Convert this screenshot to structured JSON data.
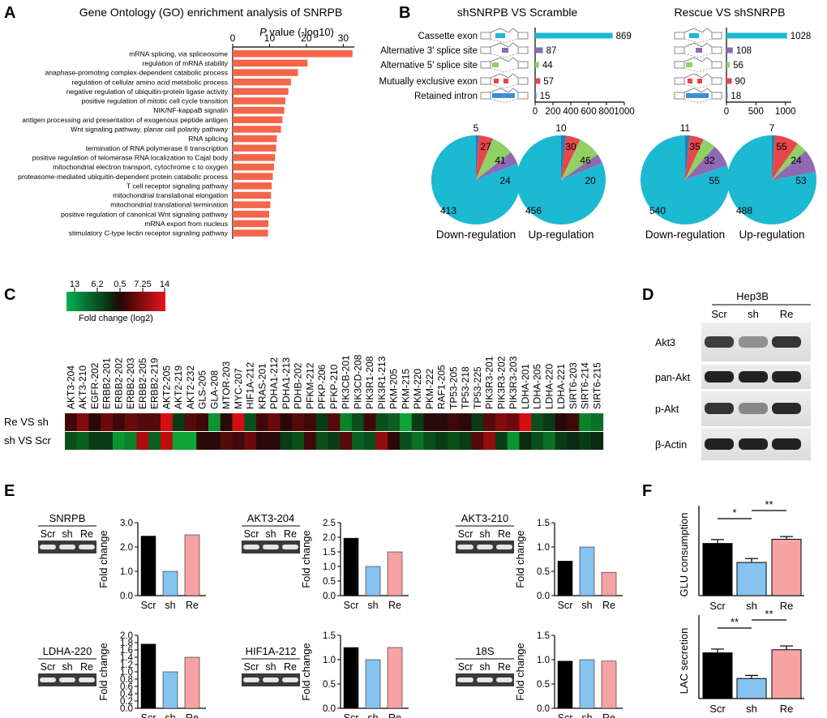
{
  "panels": {
    "a": "A",
    "b": "B",
    "c": "C",
    "d": "D",
    "e": "E",
    "f": "F"
  },
  "colors": {
    "go_bar": "#f4664a",
    "cyan": "#1cb9d3",
    "red": "#e8474a",
    "green": "#8fd165",
    "purple": "#8f6ab3",
    "blue_sh": "#87c3f1",
    "pink_re": "#f6a3a3",
    "black": "#000000"
  },
  "panel_a": {
    "title": "Gene Ontology (GO) enrichment analysis of SNRPB",
    "axis_label_italic": "P",
    "axis_label_rest": " value (-log10)",
    "chart_data": {
      "type": "bar",
      "orientation": "horizontal",
      "title": "Gene Ontology (GO) enrichment analysis of SNRPB",
      "xlabel": "P value (-log10)",
      "xlim": [
        0,
        33
      ],
      "xticks": [
        0,
        10,
        20,
        30
      ],
      "categories": [
        "mRNA splicing, via spliceosome",
        "regulation of mRNA stability",
        "anaphase-promoting complex-dependent catabolic process",
        "regulation of cellular amino acid metabolic process",
        "negative regulation of ubiquitin-protein ligase activity",
        "positive regulation of mitotic cell cycle transition",
        "NIK/NF-kappaB signalin",
        "antigen processing and presentation of exogenous peptide antigen",
        "Wnt signaling pathway, planar cell polarity pathway",
        "RNA splicing",
        "termination of RNA polymerase II transcription",
        "positive regulation of telomerase RNA localization to Cajal body",
        "mitochondrial electron transport, cytochrome c to oxygen",
        "proteasome-mediated ubiquitin-dependent protein catabolic process",
        "T cell receptor signaling pathway",
        "mitochondrial translational elongation",
        "mitochondrial translational termination",
        "positive regulation of canonical Wnt signaling pathway",
        "mRNA export from nucleus",
        "stimulatory C-type lectin receptor signaling pathway"
      ],
      "values": [
        32.5,
        20.3,
        17.7,
        15.8,
        15.1,
        14.3,
        14.0,
        13.5,
        13.1,
        12.0,
        11.8,
        11.5,
        11.2,
        10.9,
        10.6,
        10.4,
        10.2,
        9.9,
        9.7,
        9.6
      ]
    }
  },
  "panel_b": {
    "left_title": "shSNRPB VS Scramble",
    "right_title": "Rescue VS shSNRPB",
    "chart_data": [
      {
        "type": "bar",
        "orientation": "horizontal",
        "title": "shSNRPB VS Scramble",
        "categories": [
          "Cassette exon",
          "Alternative 3' splice site",
          "Alternative 5' splice site",
          "Mutually exclusive exon",
          "Retained intron"
        ],
        "values": [
          869,
          87,
          44,
          57,
          15
        ],
        "xlim": [
          0,
          1000
        ],
        "xticks": [
          0,
          200,
          400,
          600,
          800,
          1000
        ]
      },
      {
        "type": "bar",
        "orientation": "horizontal",
        "title": "Rescue VS shSNRPB",
        "categories": [
          "Cassette exon",
          "Alternative 3' splice site",
          "Alternative 5' splice site",
          "Mutually exclusive exon",
          "Retained intron"
        ],
        "values": [
          1028,
          108,
          56,
          90,
          18
        ],
        "xlim": [
          0,
          1100
        ],
        "xticks": [
          0,
          500,
          1000
        ]
      }
    ],
    "pies": [
      {
        "type": "pie",
        "label": "Down-regulation",
        "slices": [
          {
            "value": 413,
            "label": "413",
            "color": "#1cb9d3"
          },
          {
            "value": 27,
            "label": "27",
            "color": "#e8474a"
          },
          {
            "value": 41,
            "label": "41",
            "color": "#8fd165"
          },
          {
            "value": 24,
            "label": "24",
            "color": "#8f6ab3"
          },
          {
            "value": 5,
            "label": "5",
            "color": "#2b7bb8"
          }
        ]
      },
      {
        "type": "pie",
        "label": "Up-regulation",
        "slices": [
          {
            "value": 456,
            "label": "456",
            "color": "#1cb9d3"
          },
          {
            "value": 30,
            "label": "30",
            "color": "#e8474a"
          },
          {
            "value": 46,
            "label": "46",
            "color": "#8fd165"
          },
          {
            "value": 20,
            "label": "20",
            "color": "#8f6ab3"
          },
          {
            "value": 10,
            "label": "10",
            "color": "#2b7bb8"
          }
        ]
      },
      {
        "type": "pie",
        "label": "Down-regulation",
        "slices": [
          {
            "value": 540,
            "label": "540",
            "color": "#1cb9d3"
          },
          {
            "value": 35,
            "label": "35",
            "color": "#e8474a"
          },
          {
            "value": 32,
            "label": "32",
            "color": "#8fd165"
          },
          {
            "value": 55,
            "label": "55",
            "color": "#8f6ab3"
          },
          {
            "value": 11,
            "label": "11",
            "color": "#2b7bb8"
          }
        ]
      },
      {
        "type": "pie",
        "label": "Up-regulation",
        "slices": [
          {
            "value": 488,
            "label": "488",
            "color": "#1cb9d3"
          },
          {
            "value": 55,
            "label": "55",
            "color": "#e8474a"
          },
          {
            "value": 24,
            "label": "24",
            "color": "#8fd165"
          },
          {
            "value": 53,
            "label": "53",
            "color": "#8f6ab3"
          },
          {
            "value": 7,
            "label": "7",
            "color": "#2b7bb8"
          }
        ]
      }
    ]
  },
  "panel_c": {
    "legend_ticks": [
      "13",
      "6.2",
      "0.5",
      "7.25",
      "14"
    ],
    "legend_title": "Fold change (log2)",
    "chart_data": {
      "type": "heatmap",
      "rows": [
        "Re VS sh",
        "sh VS Scr"
      ],
      "columns": [
        "AKT3-204",
        "AKT3-210",
        "EGFR-202",
        "ERBB2-201",
        "ERBB2-202",
        "ERBB2-203",
        "ERBB2-205",
        "ERBB2-219",
        "AKT2-205",
        "AKT2-219",
        "AKT2-232",
        "GLS-205",
        "GLA-208",
        "MTOR-203",
        "MYC-207",
        "HIF1A-212",
        "KRAS-201",
        "PDHA1-212",
        "PDHA1-213",
        "PDHB-202",
        "PFKM-212",
        "PFKP-206",
        "PFKP-210",
        "PIK3CB-201",
        "PIK3CD-208",
        "PIK3R1-208",
        "PIK3R1-213",
        "PKM-205",
        "PKM-215",
        "PKM-220",
        "PKM-222",
        "RAF1-205",
        "TP53-205",
        "TP53-218",
        "TP53-225",
        "PIK3R3-201",
        "PIK3R3-202",
        "PIK3R3-203",
        "LDHA-201",
        "LDHA-205",
        "LDHA-220",
        "LDHA-221",
        "SIRT6-203",
        "SIRT6-214",
        "SIRT6-215"
      ],
      "values": [
        [
          0.2,
          0.5,
          0.1,
          0.4,
          0.2,
          0.4,
          0.3,
          0.3,
          0.9,
          -0.2,
          0.3,
          0.2,
          -0.7,
          0.1,
          0.9,
          -0.3,
          0.2,
          0.4,
          0.1,
          0.3,
          0.2,
          -0.2,
          0.3,
          -0.6,
          -0.3,
          0.2,
          -0.3,
          -0.4,
          -0.8,
          -0.2,
          0.1,
          0.1,
          0.2,
          0.1,
          -0.2,
          0.3,
          0.5,
          0.4,
          0.9,
          -0.3,
          -0.2,
          0.1,
          0.2,
          -0.6,
          -0.5
        ],
        [
          -0.3,
          -0.4,
          -0.2,
          -0.2,
          -0.7,
          -0.6,
          0.7,
          -0.4,
          0.8,
          -0.8,
          -0.8,
          0.1,
          0.1,
          0.3,
          0.2,
          0.4,
          0.1,
          0.1,
          -0.2,
          -0.3,
          0.2,
          -0.3,
          -0.2,
          0.3,
          -0.4,
          -0.3,
          0.6,
          0.1,
          -0.3,
          -0.5,
          -0.3,
          -0.2,
          -0.3,
          -0.2,
          0.3,
          0.6,
          -0.2,
          -0.7,
          -0.1,
          -0.3,
          -0.5,
          -0.2,
          -0.1,
          -0.2,
          -0.1
        ]
      ]
    }
  },
  "panel_d": {
    "cell_line": "Hep3B",
    "lanes": [
      "Scr",
      "sh",
      "Re"
    ],
    "rows": [
      {
        "label": "Akt3",
        "intensity": [
          0.75,
          0.3,
          0.8
        ]
      },
      {
        "label": "pan-Akt",
        "intensity": [
          0.9,
          0.9,
          0.9
        ]
      },
      {
        "label": "p-Akt",
        "intensity": [
          0.8,
          0.35,
          0.85
        ]
      },
      {
        "label": "β-Actin",
        "intensity": [
          0.9,
          0.9,
          0.9
        ]
      }
    ]
  },
  "panel_e": {
    "ylabel": "Fold change",
    "gel_lanes": [
      "Scr",
      "sh",
      "Re"
    ],
    "chart_data": [
      {
        "type": "bar",
        "title": "SNRPB",
        "categories": [
          "Scr",
          "sh",
          "Re"
        ],
        "values": [
          2.45,
          1.0,
          2.5
        ],
        "ylim": [
          0,
          3.0
        ],
        "yticks": [
          0,
          1,
          2,
          3
        ]
      },
      {
        "type": "bar",
        "title": "AKT3-204",
        "categories": [
          "Scr",
          "sh",
          "Re"
        ],
        "values": [
          1.97,
          1.0,
          1.5
        ],
        "ylim": [
          0,
          2.5
        ],
        "yticks": [
          0,
          0.5,
          1.0,
          1.5,
          2.0,
          2.5
        ]
      },
      {
        "type": "bar",
        "title": "AKT3-210",
        "categories": [
          "Scr",
          "sh",
          "Re"
        ],
        "values": [
          0.71,
          1.0,
          0.48
        ],
        "ylim": [
          0,
          1.5
        ],
        "yticks": [
          0,
          0.5,
          1.0,
          1.5
        ]
      },
      {
        "type": "bar",
        "title": "LDHA-220",
        "categories": [
          "Scr",
          "sh",
          "Re"
        ],
        "values": [
          1.76,
          1.0,
          1.4
        ],
        "ylim": [
          0,
          2.0
        ],
        "yticks": [
          0,
          0.2,
          0.4,
          0.6,
          0.8,
          1.0,
          1.2,
          1.4,
          1.6,
          1.8,
          2.0
        ]
      },
      {
        "type": "bar",
        "title": "HIF1A-212",
        "categories": [
          "Scr",
          "sh",
          "Re"
        ],
        "values": [
          1.25,
          1.0,
          1.25
        ],
        "ylim": [
          0,
          1.5
        ],
        "yticks": [
          0,
          0.5,
          1.0,
          1.5
        ]
      },
      {
        "type": "bar",
        "title": "18S",
        "categories": [
          "Scr",
          "sh",
          "Re"
        ],
        "values": [
          0.97,
          1.0,
          0.97
        ],
        "ylim": [
          0,
          1.5
        ],
        "yticks": [
          0,
          0.5,
          1.0,
          1.5
        ]
      }
    ]
  },
  "panel_f": {
    "chart_data": [
      {
        "type": "bar",
        "ylabel": "GLU consumption",
        "categories": [
          "Scr",
          "sh",
          "Re"
        ],
        "values": [
          17.3,
          11.0,
          18.7
        ],
        "errors": [
          1.3,
          1.3,
          0.9
        ],
        "ylim": [
          0,
          25
        ],
        "sig": [
          {
            "from": 0,
            "to": 1,
            "label": "*"
          },
          {
            "from": 1,
            "to": 2,
            "label": "**"
          }
        ]
      },
      {
        "type": "bar",
        "ylabel": "LAC secretion",
        "categories": [
          "Scr",
          "sh",
          "Re"
        ],
        "values": [
          14.6,
          6.4,
          15.6
        ],
        "errors": [
          1.2,
          1.0,
          1.2
        ],
        "ylim": [
          0,
          22
        ],
        "sig": [
          {
            "from": 0,
            "to": 1,
            "label": "**"
          },
          {
            "from": 1,
            "to": 2,
            "label": "**"
          }
        ]
      }
    ]
  }
}
